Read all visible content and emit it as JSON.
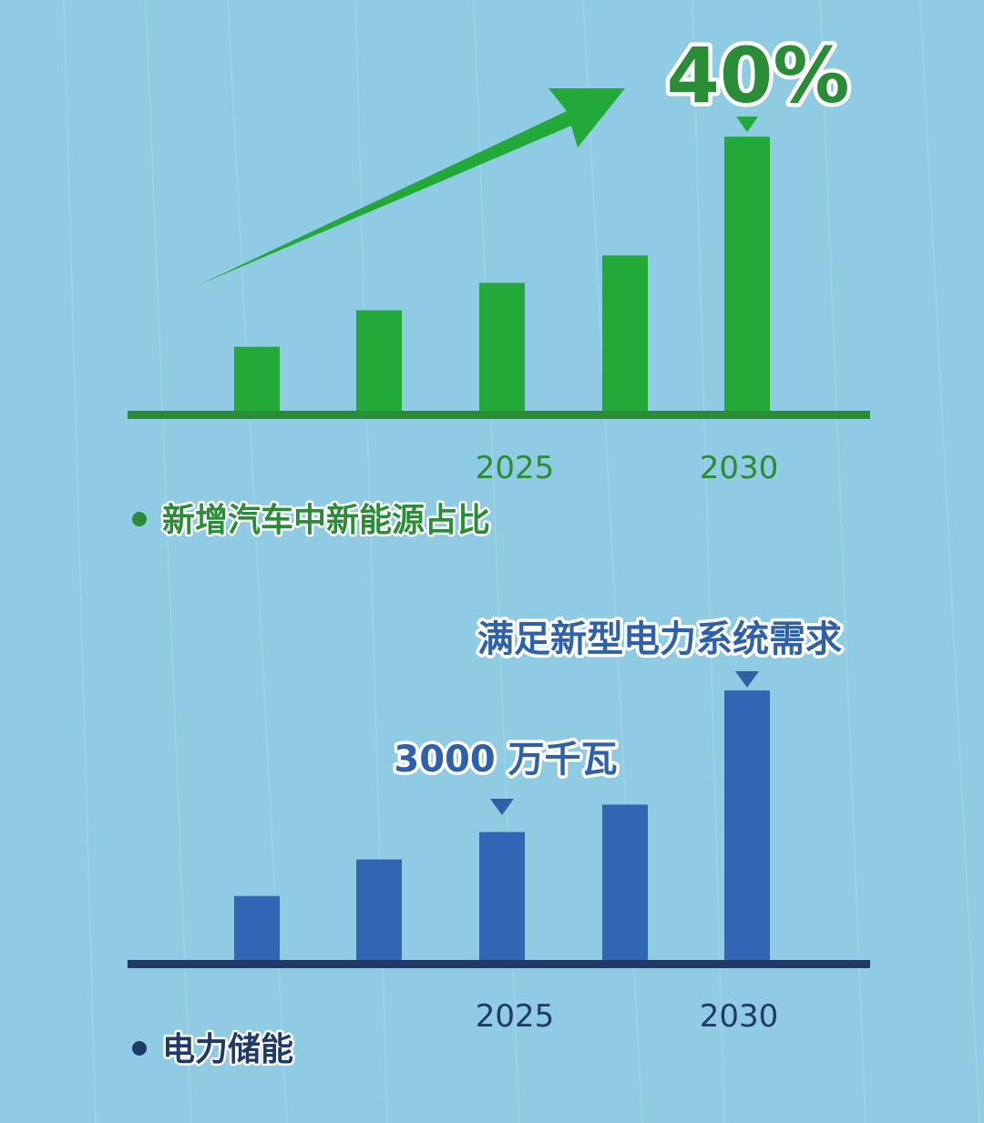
{
  "colors": {
    "background": "#8fcbe3",
    "green": "#23a83a",
    "green_dark": "#2a8c36",
    "blue": "#3066b3",
    "navy": "#1f3a66"
  },
  "icons": {
    "arrow": "up-right-arrow-icon",
    "pointer": "down-triangle-icon"
  },
  "chart_data": [
    {
      "type": "bar",
      "title": "新增汽车中新能源占比",
      "categories": [
        "",
        "",
        "2025",
        "",
        "2030"
      ],
      "tick_labels": [
        "2025",
        "2030"
      ],
      "values": [
        7,
        11,
        14,
        17,
        30
      ],
      "ylim": [
        0,
        31
      ],
      "annotation": {
        "category": "2030",
        "text": "40%"
      },
      "color": "#23a83a"
    },
    {
      "type": "bar",
      "title": "电力储能",
      "categories": [
        "",
        "",
        "2025",
        "",
        "2030"
      ],
      "tick_labels": [
        "2025",
        "2030"
      ],
      "values": [
        7,
        11,
        14,
        17,
        29.5
      ],
      "ylim": [
        0,
        31
      ],
      "annotations": [
        {
          "category": "2025",
          "text": "3000 万千瓦"
        },
        {
          "category": "2030",
          "text": "满足新型电力系统需求"
        }
      ],
      "color": "#3066b3"
    }
  ]
}
